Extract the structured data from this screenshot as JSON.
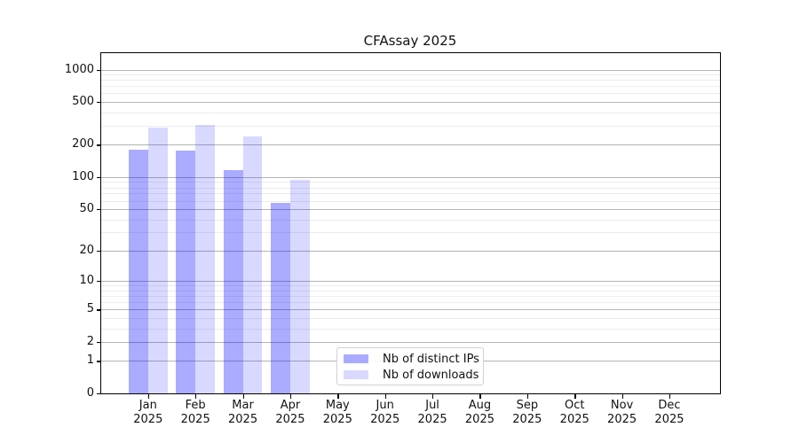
{
  "chart_data": {
    "type": "bar",
    "title": "CFAssay 2025",
    "x_labels": [
      {
        "month": "Jan",
        "year": "2025"
      },
      {
        "month": "Feb",
        "year": "2025"
      },
      {
        "month": "Mar",
        "year": "2025"
      },
      {
        "month": "Apr",
        "year": "2025"
      },
      {
        "month": "May",
        "year": "2025"
      },
      {
        "month": "Jun",
        "year": "2025"
      },
      {
        "month": "Jul",
        "year": "2025"
      },
      {
        "month": "Aug",
        "year": "2025"
      },
      {
        "month": "Sep",
        "year": "2025"
      },
      {
        "month": "Oct",
        "year": "2025"
      },
      {
        "month": "Nov",
        "year": "2025"
      },
      {
        "month": "Dec",
        "year": "2025"
      }
    ],
    "y_ticks": [
      0,
      1,
      2,
      5,
      10,
      20,
      50,
      100,
      200,
      500,
      1000
    ],
    "y_scale": "log1p",
    "ylim": [
      0,
      1450
    ],
    "grid": true,
    "legend_position": "lower center inside",
    "series": [
      {
        "name": "Nb of distinct IPs",
        "color": "#A6A6FB",
        "fill": "rgba(0,0,255,0.33)",
        "values": [
          180,
          175,
          117,
          57,
          null,
          null,
          null,
          null,
          null,
          null,
          null,
          null
        ]
      },
      {
        "name": "Nb of downloads",
        "color": "#D9D9FB",
        "fill": "rgba(0,0,255,0.15)",
        "values": [
          291,
          307,
          237,
          94,
          null,
          null,
          null,
          null,
          null,
          null,
          null,
          null
        ]
      }
    ]
  },
  "colors": {
    "grid_major": "#b4b4b4",
    "grid_minor": "#ececec",
    "spine": "#000000",
    "background": "#ffffff",
    "text": "#111111"
  }
}
